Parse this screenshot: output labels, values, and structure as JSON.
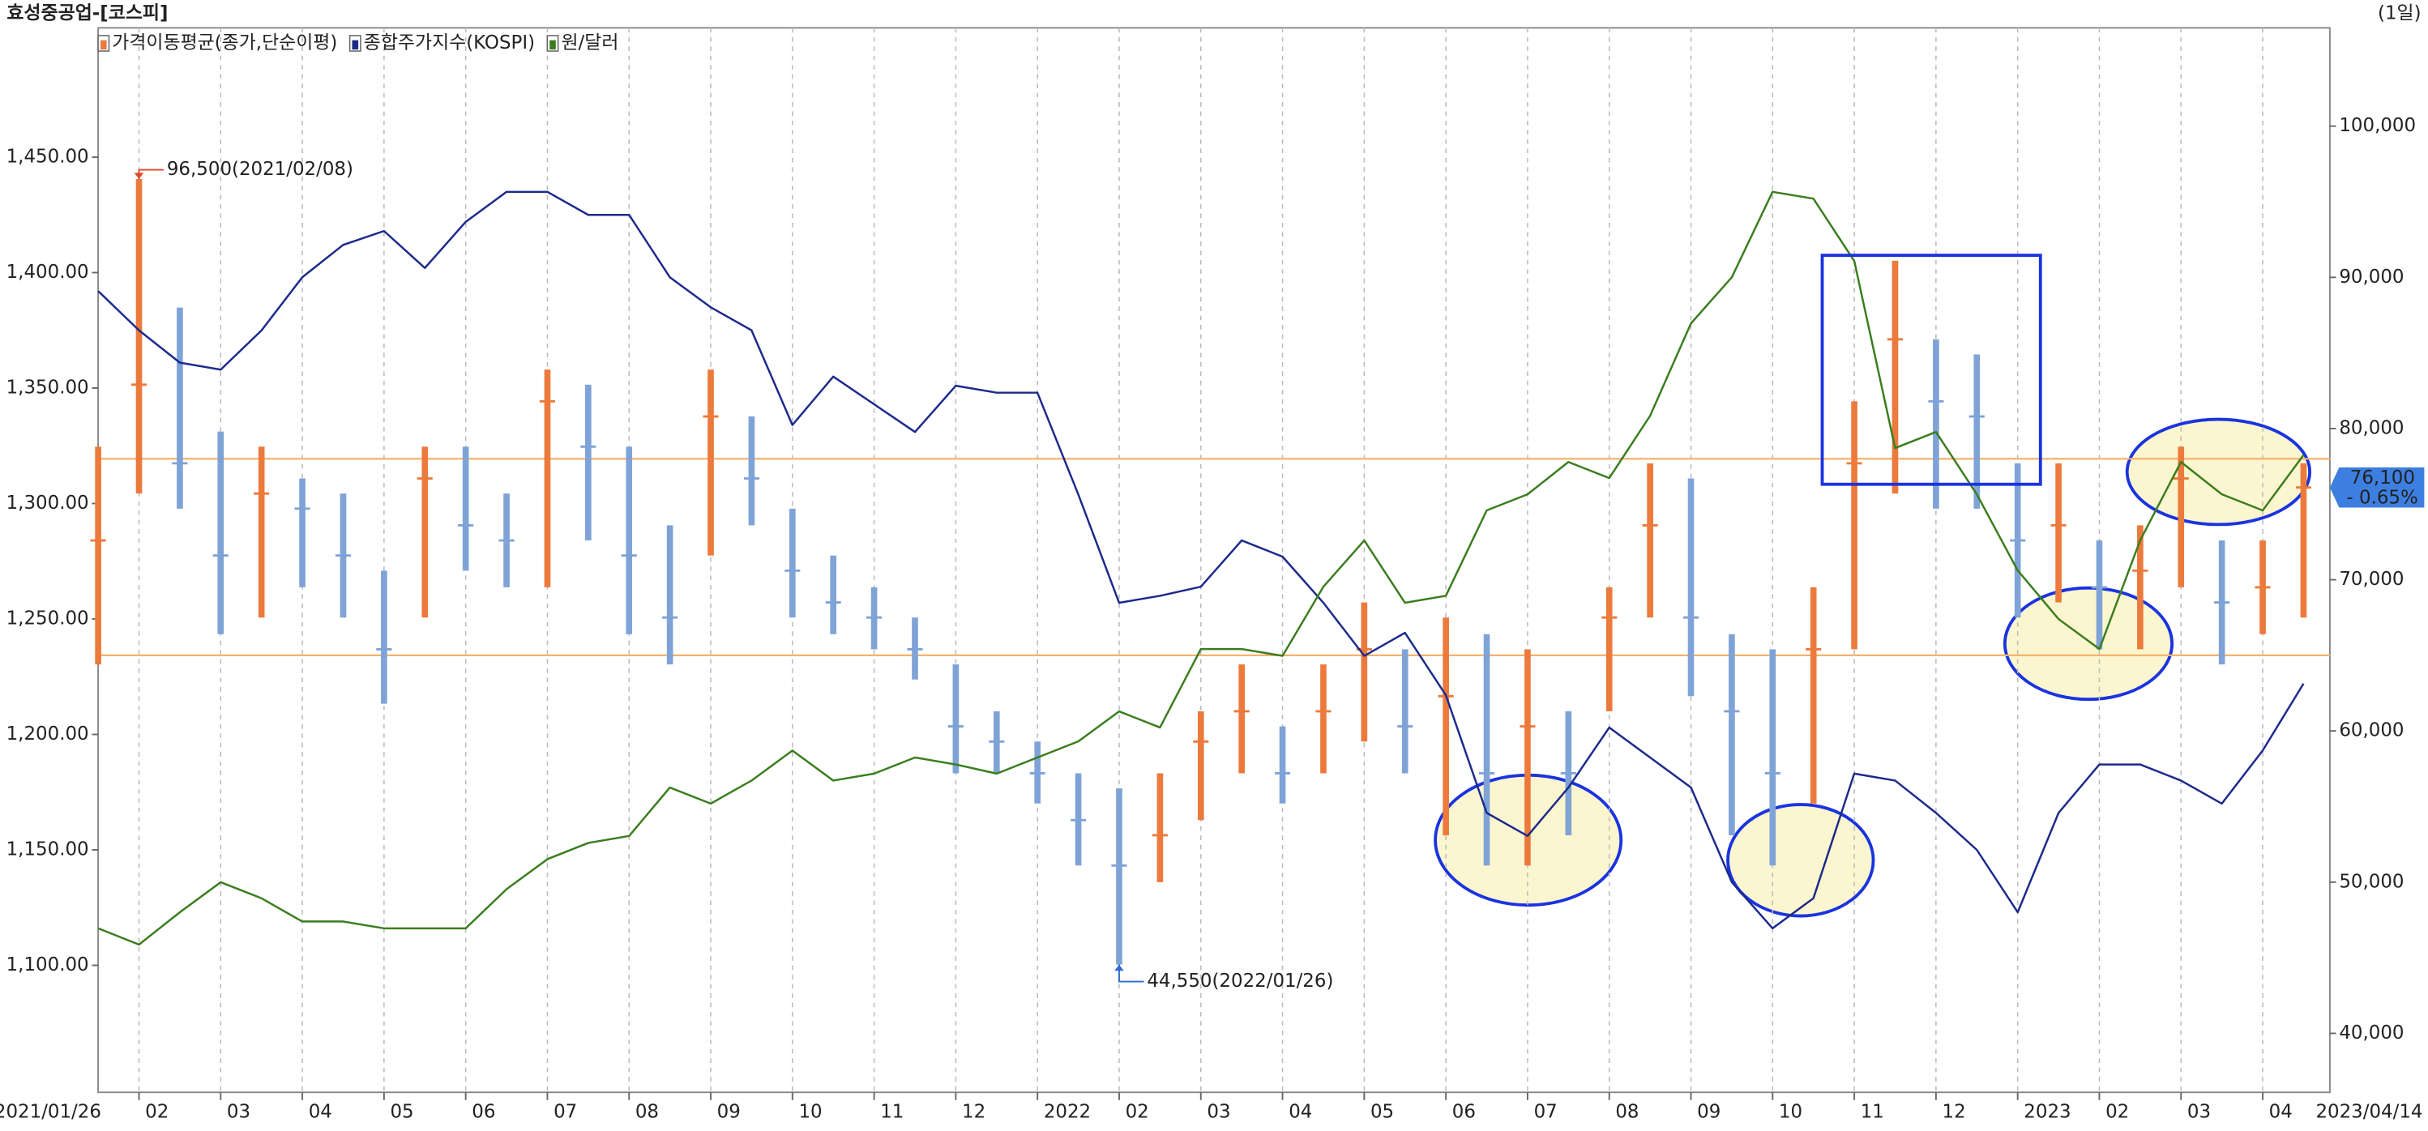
{
  "chart_data": {
    "type": "combo",
    "title": "효성중공업-[코스피]",
    "period": "(1일)",
    "categories": [
      "2021/01/26",
      "02",
      null,
      "03",
      null,
      "04",
      null,
      "05",
      null,
      "06",
      null,
      "07",
      null,
      "08",
      null,
      "09",
      null,
      "10",
      null,
      "11",
      null,
      "12",
      null,
      "2022",
      null,
      "02",
      null,
      "03",
      null,
      "04",
      null,
      "05",
      null,
      "06",
      null,
      "07",
      null,
      "08",
      null,
      "09",
      null,
      "10",
      null,
      "11",
      null,
      "12",
      null,
      "2023",
      null,
      "02",
      null,
      "03",
      null,
      "04",
      "2023/04/14"
    ],
    "ylim": [
      1045,
      1506
    ],
    "yticks": [
      {
        "value": 1100,
        "label": "1,100.00"
      },
      {
        "value": 1150,
        "label": "1,150.00"
      },
      {
        "value": 1200,
        "label": "1,200.00"
      },
      {
        "value": 1250,
        "label": "1,250.00"
      },
      {
        "value": 1300,
        "label": "1,300.00"
      },
      {
        "value": 1350,
        "label": "1,350.00"
      },
      {
        "value": 1400,
        "label": "1,400.00"
      },
      {
        "value": 1450,
        "label": "1,450.00"
      }
    ],
    "y2lim": [
      36100,
      106500
    ],
    "y2ticks": [
      {
        "value": 40000,
        "label": "40,000"
      },
      {
        "value": 50000,
        "label": "50,000"
      },
      {
        "value": 60000,
        "label": "60,000"
      },
      {
        "value": 70000,
        "label": "70,000"
      },
      {
        "value": 80000,
        "label": "80,000"
      },
      {
        "value": 90000,
        "label": "90,000"
      },
      {
        "value": 100000,
        "label": "100,000"
      }
    ],
    "grid": "x",
    "hlines": [
      78000,
      65000
    ],
    "hline_color": "#f6b26b",
    "series": [
      {
        "name": "가격이동평균(종가,단순이평)",
        "type": "range-bar",
        "axis": "y2",
        "up_color": "#ec7a3c",
        "down_color": "#7fa3d6",
        "high": [
          78800,
          96500,
          88000,
          79800,
          78800,
          76700,
          75700,
          70600,
          78800,
          78800,
          75700,
          83900,
          82900,
          78800,
          73600,
          83900,
          80800,
          74700,
          71600,
          69500,
          67500,
          64400,
          61300,
          59300,
          57200,
          56200,
          57200,
          61300,
          64400,
          60300,
          64400,
          68500,
          65400,
          67500,
          66400,
          65400,
          61300,
          69500,
          77700,
          76700,
          66400,
          65400,
          69500,
          81800,
          91100,
          85900,
          84900,
          77700,
          77700,
          72600,
          73600,
          78800,
          72600,
          72600,
          77700
        ],
        "low": [
          64400,
          75700,
          74700,
          66400,
          67500,
          69500,
          67500,
          61800,
          67500,
          70600,
          69500,
          69500,
          72600,
          66400,
          64400,
          71600,
          73600,
          67500,
          66400,
          65400,
          63400,
          57200,
          57200,
          55200,
          51100,
          44550,
          50000,
          54100,
          57200,
          55200,
          57200,
          59300,
          57200,
          53100,
          51100,
          51100,
          53100,
          61300,
          67500,
          62300,
          53100,
          51100,
          55200,
          65400,
          75700,
          74700,
          74700,
          67500,
          68500,
          65400,
          65400,
          69500,
          64400,
          66400,
          67500
        ],
        "close": [
          72600,
          82900,
          77700,
          71600,
          75700,
          74700,
          71600,
          65400,
          76700,
          73600,
          72600,
          81800,
          78800,
          71600,
          67500,
          80800,
          76700,
          70600,
          68500,
          67500,
          65400,
          60300,
          59300,
          57200,
          54100,
          51100,
          53100,
          59300,
          61300,
          57200,
          61300,
          65400,
          60300,
          62300,
          57200,
          60300,
          57200,
          67500,
          73600,
          67500,
          61300,
          57200,
          65400,
          77700,
          85900,
          81800,
          80800,
          72600,
          73600,
          69500,
          70600,
          76700,
          68500,
          69500,
          76100
        ]
      },
      {
        "name": "종합주가지수(KOSPI)",
        "type": "line",
        "color": "#1c2a8c",
        "values": [
          1392,
          1375,
          1361,
          1358,
          1375,
          1398,
          1412,
          1418,
          1402,
          1422,
          1435,
          1435,
          1425,
          1425,
          1398,
          1385,
          1375,
          1334,
          1355,
          1343,
          1331,
          1351,
          1348,
          1348,
          1304,
          1257,
          1260,
          1264,
          1284,
          1277,
          1257,
          1234,
          1244,
          1217,
          1166,
          1156,
          1177,
          1203,
          1190,
          1177,
          1136,
          1116,
          1129,
          1183,
          1180,
          1166,
          1150,
          1123,
          1166,
          1187,
          1187,
          1180,
          1170,
          1193,
          1222
        ]
      },
      {
        "name": "원/달러",
        "type": "line",
        "color": "#3b7d1f",
        "values": [
          1116,
          1109,
          1123,
          1136,
          1129,
          1119,
          1119,
          1116,
          1116,
          1116,
          1133,
          1146,
          1153,
          1156,
          1177,
          1170,
          1180,
          1193,
          1180,
          1183,
          1190,
          1187,
          1183,
          1190,
          1197,
          1210,
          1203,
          1237,
          1237,
          1234,
          1264,
          1284,
          1257,
          1260,
          1297,
          1304,
          1318,
          1311,
          1338,
          1378,
          1398,
          1435,
          1432,
          1405,
          1324,
          1331,
          1304,
          1271,
          1250,
          1237,
          1284,
          1318,
          1304,
          1297,
          1321
        ]
      }
    ],
    "annotations": [
      {
        "value": 96500,
        "label": "96,500(2021/02/08)",
        "color": "#e0472a"
      },
      {
        "value": 44550,
        "label": "44,550(2022/01/26)",
        "color": "#2e6ad0"
      }
    ],
    "last_price": {
      "value": 76100,
      "label": "76,100",
      "change": "- 0.65%",
      "color": "#3d7fe0"
    }
  }
}
